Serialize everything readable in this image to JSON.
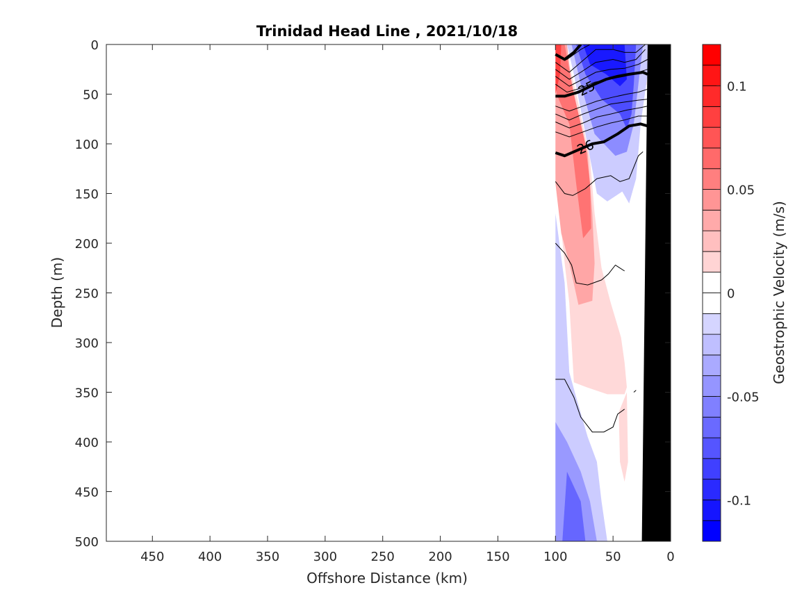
{
  "chart_data": {
    "type": "heatmap",
    "title": "Trinidad Head Line , 2021/10/18",
    "xlabel": "Offshore Distance (km)",
    "ylabel": "Depth (m)",
    "colorbar_label": "Geostrophic Velocity (m/s)",
    "x_range": [
      490,
      0
    ],
    "x_reversed": true,
    "y_range": [
      0,
      500
    ],
    "y_reversed": true,
    "x_ticks": [
      450,
      400,
      350,
      300,
      250,
      200,
      150,
      100,
      50,
      0
    ],
    "y_ticks": [
      0,
      50,
      100,
      150,
      200,
      250,
      300,
      350,
      400,
      450,
      500
    ],
    "colorbar_range": [
      -0.12,
      0.12
    ],
    "colorbar_ticks": [
      {
        "value": 0.1,
        "label": "0.1"
      },
      {
        "value": 0.05,
        "label": "0.05"
      },
      {
        "value": 0,
        "label": "0"
      },
      {
        "value": -0.05,
        "label": "-0.05"
      },
      {
        "value": -0.1,
        "label": "-0.1"
      }
    ],
    "colorbar_levels": 24,
    "colors": {
      "positive": "#ff0000",
      "negative": "#0000ff",
      "zero": "#ffffff",
      "bathymetry": "#000000"
    },
    "grid": false,
    "velocity_regions": [
      {
        "sign": "neg",
        "level": 0.2,
        "points": [
          [
            100,
            170
          ],
          [
            92,
            240
          ],
          [
            88,
            330
          ],
          [
            82,
            355
          ],
          [
            72,
            395
          ],
          [
            64,
            420
          ],
          [
            60,
            460
          ],
          [
            55,
            500
          ],
          [
            100,
            500
          ]
        ]
      },
      {
        "sign": "neg",
        "level": 0.4,
        "points": [
          [
            100,
            380
          ],
          [
            90,
            400
          ],
          [
            78,
            430
          ],
          [
            70,
            460
          ],
          [
            64,
            500
          ],
          [
            100,
            500
          ]
        ]
      },
      {
        "sign": "neg",
        "level": 0.6,
        "points": [
          [
            90,
            430
          ],
          [
            78,
            460
          ],
          [
            74,
            500
          ],
          [
            94,
            500
          ]
        ]
      },
      {
        "sign": "pos",
        "level": 0.15,
        "points": [
          [
            100,
            0
          ],
          [
            100,
            130
          ],
          [
            92,
            220
          ],
          [
            88,
            260
          ],
          [
            86,
            300
          ],
          [
            84,
            340
          ],
          [
            73,
            345
          ],
          [
            55,
            352
          ],
          [
            40,
            352
          ],
          [
            38,
            345
          ],
          [
            40,
            320
          ],
          [
            43,
            295
          ],
          [
            52,
            260
          ],
          [
            60,
            225
          ],
          [
            66,
            170
          ],
          [
            70,
            115
          ],
          [
            80,
            60
          ],
          [
            88,
            20
          ],
          [
            90,
            0
          ]
        ]
      },
      {
        "sign": "pos",
        "level": 0.15,
        "points": [
          [
            38,
            350
          ],
          [
            37,
            420
          ],
          [
            40,
            440
          ],
          [
            44,
            420
          ],
          [
            45,
            370
          ]
        ]
      },
      {
        "sign": "pos",
        "level": 0.35,
        "points": [
          [
            100,
            0
          ],
          [
            100,
            140
          ],
          [
            95,
            190
          ],
          [
            88,
            220
          ],
          [
            80,
            262
          ],
          [
            68,
            258
          ],
          [
            66,
            220
          ],
          [
            68,
            170
          ],
          [
            72,
            110
          ],
          [
            86,
            40
          ],
          [
            90,
            0
          ]
        ]
      },
      {
        "sign": "pos",
        "level": 0.55,
        "points": [
          [
            100,
            0
          ],
          [
            99,
            50
          ],
          [
            88,
            80
          ],
          [
            82,
            140
          ],
          [
            76,
            195
          ],
          [
            69,
            185
          ],
          [
            70,
            140
          ],
          [
            74,
            100
          ],
          [
            84,
            50
          ],
          [
            92,
            0
          ]
        ]
      },
      {
        "sign": "pos",
        "level": 0.75,
        "points": [
          [
            100,
            0
          ],
          [
            100,
            50
          ],
          [
            96,
            30
          ],
          [
            95,
            0
          ]
        ]
      },
      {
        "sign": "pos",
        "level": 0.45,
        "points": [
          [
            20,
            10
          ],
          [
            21,
            40
          ],
          [
            24,
            45
          ],
          [
            27,
            30
          ],
          [
            26,
            10
          ]
        ]
      },
      {
        "sign": "neg",
        "level": 0.2,
        "points": [
          [
            90,
            0
          ],
          [
            84,
            30
          ],
          [
            74,
            90
          ],
          [
            64,
            150
          ],
          [
            55,
            158
          ],
          [
            42,
            148
          ],
          [
            36,
            160
          ],
          [
            30,
            135
          ],
          [
            26,
            80
          ],
          [
            20,
            30
          ],
          [
            20,
            0
          ]
        ]
      },
      {
        "sign": "neg",
        "level": 0.45,
        "points": [
          [
            86,
            0
          ],
          [
            78,
            40
          ],
          [
            66,
            90
          ],
          [
            48,
            112
          ],
          [
            38,
            108
          ],
          [
            32,
            80
          ],
          [
            28,
            40
          ],
          [
            24,
            0
          ]
        ]
      },
      {
        "sign": "neg",
        "level": 0.7,
        "points": [
          [
            82,
            0
          ],
          [
            74,
            30
          ],
          [
            60,
            55
          ],
          [
            44,
            70
          ],
          [
            38,
            85
          ],
          [
            34,
            70
          ],
          [
            32,
            40
          ],
          [
            30,
            0
          ]
        ]
      },
      {
        "sign": "neg",
        "level": 0.9,
        "points": [
          [
            76,
            0
          ],
          [
            70,
            20
          ],
          [
            56,
            30
          ],
          [
            44,
            42
          ],
          [
            38,
            35
          ],
          [
            40,
            0
          ]
        ]
      }
    ],
    "thin_contours": [
      [
        [
          100,
          10
        ],
        [
          90,
          15
        ],
        [
          78,
          5
        ],
        [
          70,
          0
        ]
      ],
      [
        [
          100,
          18
        ],
        [
          88,
          28
        ],
        [
          78,
          18
        ],
        [
          65,
          5
        ],
        [
          50,
          5
        ],
        [
          40,
          8
        ],
        [
          30,
          8
        ],
        [
          22,
          0
        ]
      ],
      [
        [
          100,
          25
        ],
        [
          88,
          35
        ],
        [
          78,
          28
        ],
        [
          65,
          18
        ],
        [
          50,
          15
        ],
        [
          40,
          18
        ],
        [
          30,
          15
        ],
        [
          22,
          5
        ]
      ],
      [
        [
          100,
          32
        ],
        [
          88,
          42
        ],
        [
          78,
          36
        ],
        [
          65,
          28
        ],
        [
          52,
          25
        ],
        [
          40,
          24
        ],
        [
          28,
          20
        ],
        [
          20,
          15
        ]
      ],
      [
        [
          100,
          40
        ],
        [
          90,
          48
        ],
        [
          78,
          44
        ],
        [
          66,
          38
        ],
        [
          54,
          35
        ],
        [
          40,
          32
        ],
        [
          28,
          28
        ],
        [
          20,
          25
        ]
      ],
      [
        [
          100,
          62
        ],
        [
          88,
          67
        ],
        [
          76,
          62
        ],
        [
          64,
          57
        ],
        [
          50,
          53
        ],
        [
          38,
          50
        ],
        [
          28,
          48
        ],
        [
          20,
          45
        ]
      ],
      [
        [
          100,
          70
        ],
        [
          88,
          76
        ],
        [
          76,
          70
        ],
        [
          64,
          65
        ],
        [
          52,
          60
        ],
        [
          40,
          58
        ],
        [
          28,
          56
        ],
        [
          20,
          55
        ]
      ],
      [
        [
          100,
          78
        ],
        [
          88,
          84
        ],
        [
          76,
          79
        ],
        [
          64,
          73
        ],
        [
          52,
          70
        ],
        [
          38,
          66
        ],
        [
          28,
          64
        ],
        [
          20,
          62
        ]
      ],
      [
        [
          100,
          88
        ],
        [
          88,
          93
        ],
        [
          76,
          88
        ],
        [
          64,
          83
        ],
        [
          52,
          79
        ],
        [
          40,
          76
        ],
        [
          28,
          72
        ],
        [
          20,
          72
        ]
      ],
      [
        [
          100,
          138
        ],
        [
          92,
          150
        ],
        [
          85,
          152
        ],
        [
          74,
          145
        ],
        [
          64,
          135
        ],
        [
          52,
          132
        ],
        [
          44,
          138
        ],
        [
          36,
          135
        ],
        [
          28,
          112
        ],
        [
          24,
          108
        ]
      ],
      [
        [
          100,
          200
        ],
        [
          92,
          210
        ],
        [
          86,
          222
        ],
        [
          82,
          240
        ],
        [
          72,
          242
        ],
        [
          60,
          237
        ],
        [
          54,
          231
        ],
        [
          48,
          222
        ],
        [
          40,
          228
        ]
      ],
      [
        [
          100,
          337
        ],
        [
          92,
          337
        ],
        [
          84,
          355
        ],
        [
          78,
          375
        ],
        [
          68,
          390
        ],
        [
          58,
          390
        ],
        [
          50,
          385
        ],
        [
          46,
          372
        ],
        [
          40,
          367
        ]
      ],
      [
        [
          32,
          350
        ],
        [
          30,
          348
        ]
      ]
    ],
    "bold_contours": [
      {
        "label": "",
        "points": [
          [
            100,
            10
          ],
          [
            92,
            15
          ],
          [
            84,
            8
          ],
          [
            78,
            0
          ]
        ]
      },
      {
        "label": "25",
        "points": [
          [
            100,
            52
          ],
          [
            92,
            52
          ],
          [
            80,
            48
          ],
          [
            66,
            40
          ],
          [
            56,
            35
          ],
          [
            46,
            32
          ],
          [
            36,
            30
          ],
          [
            24,
            28
          ],
          [
            20,
            30
          ]
        ]
      },
      {
        "label": "26",
        "points": [
          [
            100,
            109
          ],
          [
            92,
            112
          ],
          [
            80,
            106
          ],
          [
            68,
            100
          ],
          [
            58,
            98
          ],
          [
            46,
            90
          ],
          [
            36,
            82
          ],
          [
            26,
            80
          ],
          [
            20,
            82
          ]
        ]
      }
    ],
    "bathymetry": [
      [
        20,
        0
      ],
      [
        25,
        500
      ],
      [
        0,
        500
      ],
      [
        0,
        0
      ]
    ]
  }
}
